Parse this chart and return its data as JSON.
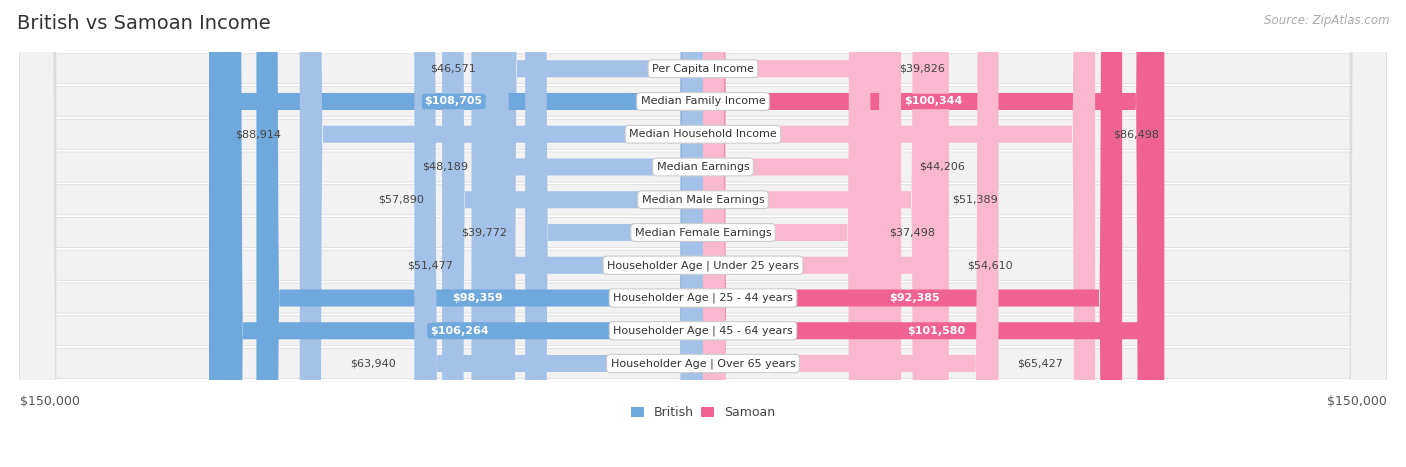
{
  "title": "British vs Samoan Income",
  "source": "Source: ZipAtlas.com",
  "categories": [
    "Per Capita Income",
    "Median Family Income",
    "Median Household Income",
    "Median Earnings",
    "Median Male Earnings",
    "Median Female Earnings",
    "Householder Age | Under 25 years",
    "Householder Age | 25 - 44 years",
    "Householder Age | 45 - 64 years",
    "Householder Age | Over 65 years"
  ],
  "british_values": [
    46571,
    108705,
    88914,
    48189,
    57890,
    39772,
    51477,
    98359,
    106264,
    63940
  ],
  "samoan_values": [
    39826,
    100344,
    86498,
    44206,
    51389,
    37498,
    54610,
    92385,
    101580,
    65427
  ],
  "british_labels": [
    "$46,571",
    "$108,705",
    "$88,914",
    "$48,189",
    "$57,890",
    "$39,772",
    "$51,477",
    "$98,359",
    "$106,264",
    "$63,940"
  ],
  "samoan_labels": [
    "$39,826",
    "$100,344",
    "$86,498",
    "$44,206",
    "$51,389",
    "$37,498",
    "$54,610",
    "$92,385",
    "$101,580",
    "$65,427"
  ],
  "british_color_light": "#a4c2e8",
  "british_color_dark": "#6fa8dc",
  "samoan_color_light": "#f9b8cf",
  "samoan_color_dark": "#f06292",
  "british_label_inside": [
    false,
    true,
    false,
    false,
    false,
    false,
    false,
    true,
    true,
    false
  ],
  "samoan_label_inside": [
    false,
    true,
    false,
    false,
    false,
    false,
    false,
    true,
    true,
    false
  ],
  "max_value": 150000,
  "bg_color": "#ffffff",
  "row_bg_color": "#f2f2f2",
  "row_border_color": "#dddddd",
  "title_fontsize": 14,
  "label_fontsize": 8,
  "category_fontsize": 8,
  "legend_fontsize": 9,
  "axis_label_fontsize": 9
}
